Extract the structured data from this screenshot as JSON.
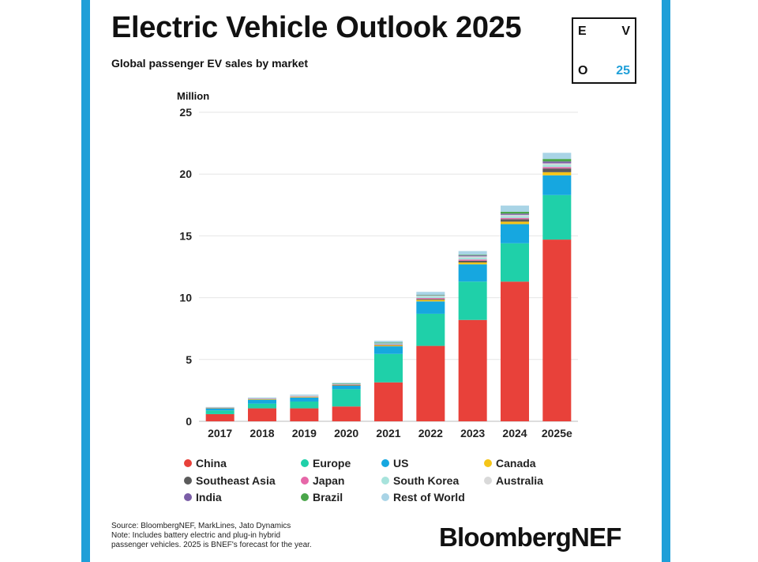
{
  "title": "Electric Vehicle Outlook 2025",
  "subtitle": "Global passenger EV sales by market",
  "badge": {
    "top_left": "E",
    "top_right": "V",
    "bottom_left": "O",
    "bottom_right": "25"
  },
  "colors": {
    "accent_bar": "#1f9fd8",
    "badge_accent": "#1f9fd8"
  },
  "chart_data": {
    "type": "bar",
    "stacked": true,
    "ylabel": "Million",
    "ylim": [
      0,
      25
    ],
    "yticks": [
      0,
      5,
      10,
      15,
      20,
      25
    ],
    "grid": true,
    "categories": [
      "2017",
      "2018",
      "2019",
      "2020",
      "2021",
      "2022",
      "2023",
      "2024",
      "2025e"
    ],
    "series": [
      {
        "name": "China",
        "color": "#e8413a",
        "values": [
          0.58,
          1.05,
          1.05,
          1.2,
          3.15,
          6.1,
          8.2,
          11.3,
          14.7
        ]
      },
      {
        "name": "Europe",
        "color": "#1fd0a9",
        "values": [
          0.3,
          0.38,
          0.55,
          1.4,
          2.3,
          2.6,
          3.1,
          3.1,
          3.6
        ]
      },
      {
        "name": "US",
        "color": "#16a7e0",
        "values": [
          0.18,
          0.32,
          0.32,
          0.28,
          0.62,
          1.0,
          1.4,
          1.55,
          1.6
        ]
      },
      {
        "name": "Canada",
        "color": "#f5c518",
        "values": [
          0.02,
          0.04,
          0.05,
          0.05,
          0.08,
          0.12,
          0.15,
          0.2,
          0.25
        ]
      },
      {
        "name": "Southeast Asia",
        "color": "#5b5b5b",
        "values": [
          0.0,
          0.0,
          0.0,
          0.01,
          0.03,
          0.07,
          0.14,
          0.2,
          0.3
        ]
      },
      {
        "name": "Japan",
        "color": "#e667a8",
        "values": [
          0.03,
          0.04,
          0.04,
          0.03,
          0.04,
          0.08,
          0.1,
          0.1,
          0.12
        ]
      },
      {
        "name": "South Korea",
        "color": "#a7e3dc",
        "values": [
          0.03,
          0.05,
          0.06,
          0.05,
          0.1,
          0.15,
          0.15,
          0.15,
          0.18
        ]
      },
      {
        "name": "Australia",
        "color": "#d9d9d9",
        "values": [
          0.0,
          0.0,
          0.01,
          0.01,
          0.02,
          0.04,
          0.1,
          0.1,
          0.12
        ]
      },
      {
        "name": "India",
        "color": "#7b5ea7",
        "values": [
          0.0,
          0.0,
          0.0,
          0.0,
          0.01,
          0.04,
          0.08,
          0.1,
          0.15
        ]
      },
      {
        "name": "Brazil",
        "color": "#4aa64a",
        "values": [
          0.0,
          0.0,
          0.0,
          0.01,
          0.01,
          0.02,
          0.05,
          0.15,
          0.2
        ]
      },
      {
        "name": "Rest of World",
        "color": "#a9d4e6",
        "values": [
          0.02,
          0.05,
          0.08,
          0.08,
          0.15,
          0.25,
          0.3,
          0.5,
          0.5
        ]
      }
    ]
  },
  "footer": {
    "source": "Source: BloombergNEF, MarkLines, Jato Dynamics",
    "note_line1": "Note: Includes battery electric and plug-in hybrid",
    "note_line2": "passenger vehicles. 2025 is BNEF's forecast for the year.",
    "logo": "BloombergNEF"
  }
}
